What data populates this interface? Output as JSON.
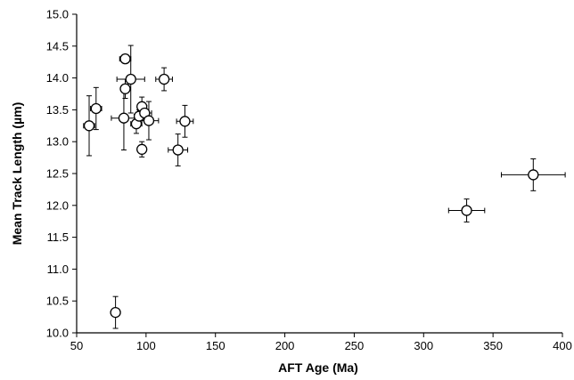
{
  "chart_data": {
    "type": "scatter",
    "title": "",
    "xlabel": "AFT Age (Ma)",
    "ylabel": "Mean Track Length (µm)",
    "xlim": [
      50,
      400
    ],
    "ylim": [
      10.0,
      15.0
    ],
    "x_ticks": [
      "50",
      "100",
      "150",
      "200",
      "250",
      "300",
      "350",
      "400"
    ],
    "y_ticks": [
      "10.0",
      "10.5",
      "11.0",
      "11.5",
      "12.0",
      "12.5",
      "13.0",
      "13.5",
      "14.0",
      "14.5",
      "15.0"
    ],
    "grid": false,
    "legend": false,
    "points": [
      {
        "x": 59,
        "y": 13.25,
        "xerr": 4,
        "yerr": 0.47
      },
      {
        "x": 64,
        "y": 13.52,
        "xerr": 4,
        "yerr": 0.33
      },
      {
        "x": 78,
        "y": 10.32,
        "xerr": 0,
        "yerr": 0.25
      },
      {
        "x": 84,
        "y": 13.37,
        "xerr": 9,
        "yerr": 0.5
      },
      {
        "x": 85,
        "y": 14.3,
        "xerr": 4,
        "yerr": 0.07
      },
      {
        "x": 85,
        "y": 13.83,
        "xerr": 0,
        "yerr": 0.15
      },
      {
        "x": 89,
        "y": 13.98,
        "xerr": 10,
        "yerr": 0.53
      },
      {
        "x": 93,
        "y": 13.28,
        "xerr": 4,
        "yerr": 0.15
      },
      {
        "x": 95,
        "y": 13.4,
        "xerr": 3,
        "yerr": 0.1
      },
      {
        "x": 97,
        "y": 12.88,
        "xerr": 0,
        "yerr": 0.12
      },
      {
        "x": 97,
        "y": 13.55,
        "xerr": 3,
        "yerr": 0.15
      },
      {
        "x": 99,
        "y": 13.45,
        "xerr": 5,
        "yerr": 0.12
      },
      {
        "x": 102,
        "y": 13.33,
        "xerr": 7,
        "yerr": 0.3
      },
      {
        "x": 113,
        "y": 13.98,
        "xerr": 6,
        "yerr": 0.18
      },
      {
        "x": 123,
        "y": 12.87,
        "xerr": 7,
        "yerr": 0.25
      },
      {
        "x": 128,
        "y": 13.32,
        "xerr": 6,
        "yerr": 0.25
      },
      {
        "x": 331,
        "y": 11.92,
        "xerr": 13,
        "yerr": 0.18
      },
      {
        "x": 379,
        "y": 12.48,
        "xerr": 23,
        "yerr": 0.25
      }
    ],
    "colors": {
      "axis": "#000000",
      "marker_fill": "#ffffff",
      "marker_stroke": "#000000"
    }
  }
}
